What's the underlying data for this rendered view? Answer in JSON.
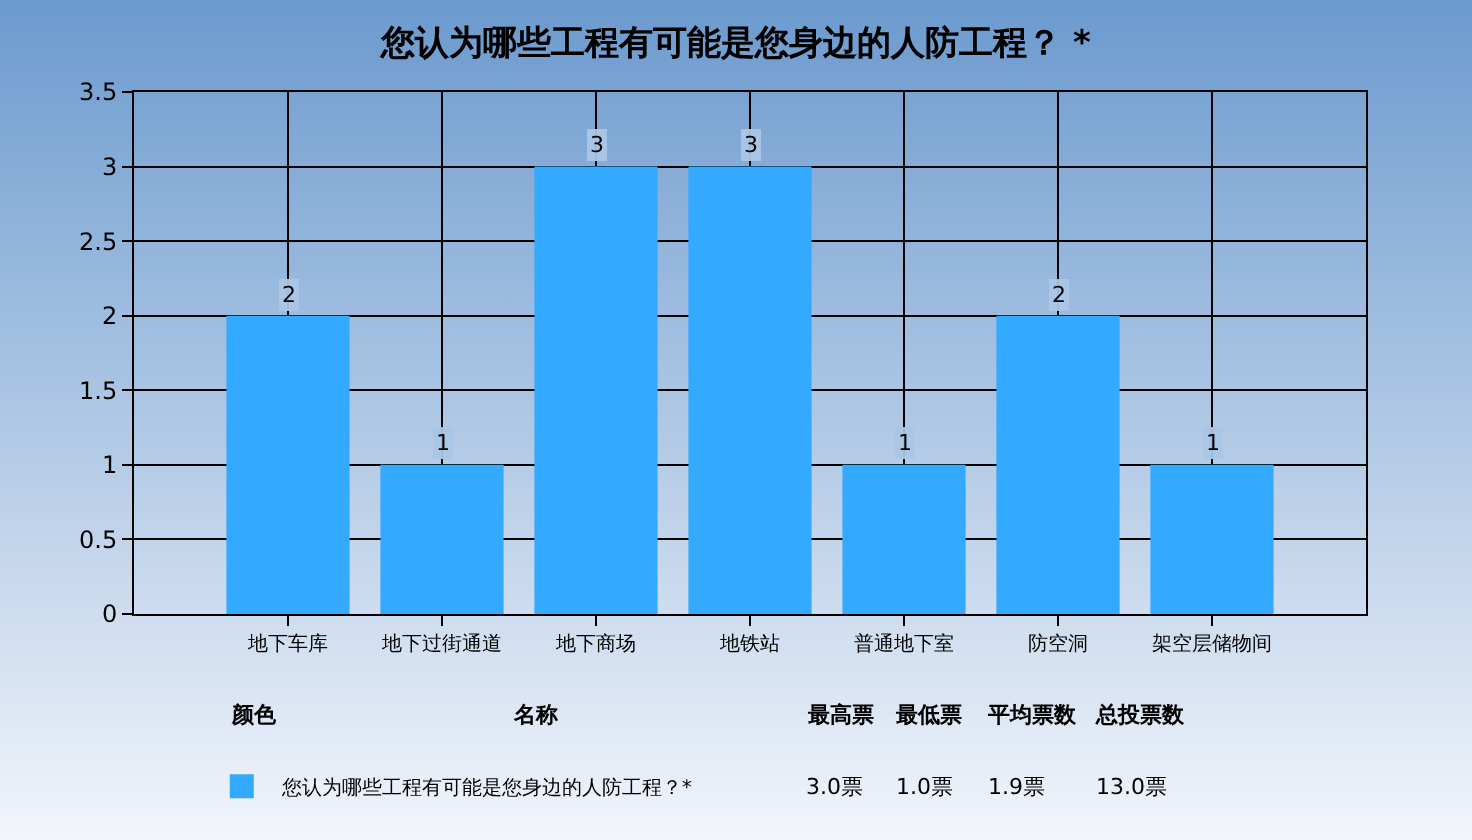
{
  "chart_data": {
    "type": "bar",
    "title": "您认为哪些工程有可能是您身边的人防工程？ *",
    "categories": [
      "地下车库",
      "地下过街通道",
      "地下商场",
      "地铁站",
      "普通地下室",
      "防空洞",
      "架空层储物间"
    ],
    "series": [
      {
        "name": "您认为哪些工程有可能是您身边的人防工程？*",
        "color": "#33a9ff",
        "values": [
          2,
          1,
          3,
          3,
          1,
          2,
          1
        ]
      }
    ],
    "ylim": [
      0,
      3.5
    ],
    "yticks": [
      0,
      0.5,
      1,
      1.5,
      2,
      2.5,
      3,
      3.5
    ],
    "grid": true,
    "data_labels": true,
    "legend": "bottom",
    "annotations": [
      "颜色",
      "名称",
      "最高票",
      "最低票",
      "平均票数",
      "总投票数",
      "3.0票",
      "1.0票",
      "1.9票",
      "13.0票"
    ]
  }
}
